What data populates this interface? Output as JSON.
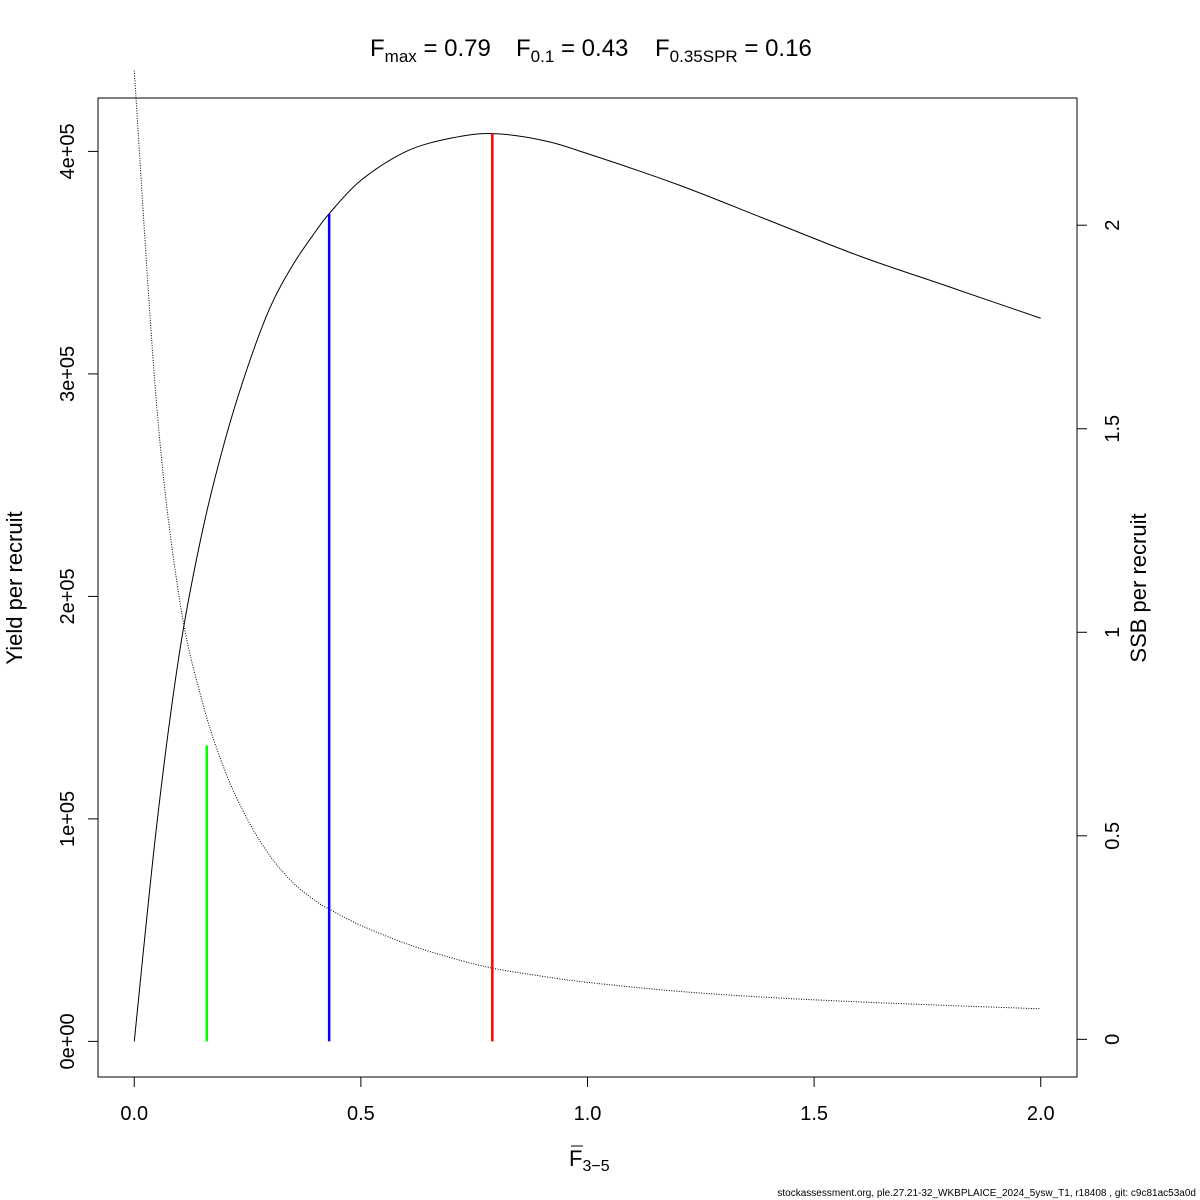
{
  "chart_data": {
    "type": "line",
    "title": {
      "fmax": {
        "sym": "F",
        "sub": "max",
        "eq": " = ",
        "value": "0.79"
      },
      "f01": {
        "sym": "F",
        "sub": "0.1",
        "eq": " = ",
        "value": "0.43"
      },
      "fspr": {
        "sym": "F",
        "sub": "0.35SPR",
        "eq": " = ",
        "value": "0.16"
      }
    },
    "xlabel": {
      "sym": "F",
      "sub": "3−5"
    },
    "ylabel": "Yield per recruit",
    "y2label": "SSB per recruit",
    "xlim": [
      -0.08,
      2.08
    ],
    "ylim": [
      -16000,
      424000
    ],
    "y2lim": [
      -0.0925,
      2.3125
    ],
    "xticks": [
      {
        "v": 0.0,
        "label": "0.0"
      },
      {
        "v": 0.5,
        "label": "0.5"
      },
      {
        "v": 1.0,
        "label": "1.0"
      },
      {
        "v": 1.5,
        "label": "1.5"
      },
      {
        "v": 2.0,
        "label": "2.0"
      }
    ],
    "yticks": [
      {
        "v": 0,
        "label": "0e+00"
      },
      {
        "v": 100000,
        "label": "1e+05"
      },
      {
        "v": 200000,
        "label": "2e+05"
      },
      {
        "v": 300000,
        "label": "3e+05"
      },
      {
        "v": 400000,
        "label": "4e+05"
      }
    ],
    "y2ticks": [
      {
        "v": 0,
        "label": "0"
      },
      {
        "v": 0.5,
        "label": "0.5"
      },
      {
        "v": 1,
        "label": "1"
      },
      {
        "v": 1.5,
        "label": "1.5"
      },
      {
        "v": 2,
        "label": "2"
      }
    ],
    "yield_curve": {
      "x": [
        0,
        0.05,
        0.1,
        0.15,
        0.2,
        0.25,
        0.3,
        0.35,
        0.4,
        0.43,
        0.5,
        0.6,
        0.7,
        0.79,
        0.9,
        1.0,
        1.2,
        1.4,
        1.6,
        1.8,
        2.0
      ],
      "y": [
        0,
        98000,
        175000,
        229000,
        270000,
        303000,
        330000,
        349000,
        364000,
        372000,
        387000,
        400000,
        406000,
        408000,
        405000,
        399000,
        385000,
        369000,
        353000,
        339000,
        325000
      ],
      "color": "#000000"
    },
    "ssb_curve": {
      "x": [
        0,
        0.05,
        0.1,
        0.15,
        0.2,
        0.25,
        0.3,
        0.35,
        0.4,
        0.43,
        0.5,
        0.6,
        0.7,
        0.79,
        0.9,
        1.0,
        1.2,
        1.4,
        1.6,
        1.8,
        2.0
      ],
      "y": [
        2.38,
        1.55,
        1.08,
        0.83,
        0.66,
        0.54,
        0.45,
        0.385,
        0.34,
        0.32,
        0.28,
        0.235,
        0.2,
        0.175,
        0.155,
        0.14,
        0.118,
        0.103,
        0.092,
        0.083,
        0.075
      ],
      "color": "#000000"
    },
    "reference_lines": [
      {
        "name": "Fmax",
        "x": 0.79,
        "y_top": 408000,
        "color": "#ff0000"
      },
      {
        "name": "F0.1",
        "x": 0.43,
        "y_top": 372000,
        "color": "#0000ff"
      },
      {
        "name": "F0.35SPR",
        "x": 0.16,
        "y_top": 133000,
        "color": "#00ff00"
      }
    ],
    "grid": false
  },
  "footer": "stockassessment.org, ple.27.21-32_WKBPLAICE_2024_5ysw_T1, r18408 , git: c9c81ac53a0d"
}
